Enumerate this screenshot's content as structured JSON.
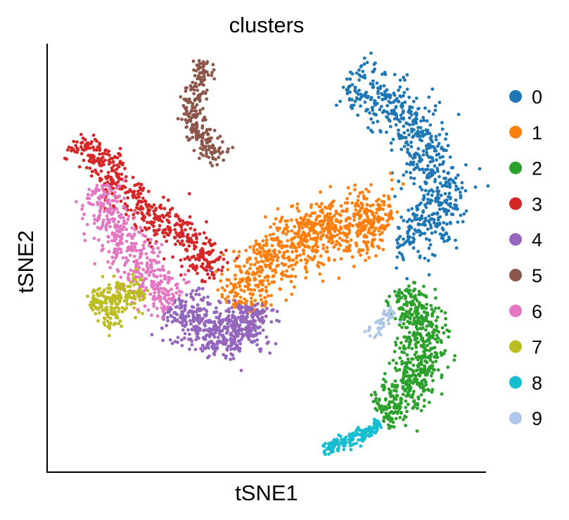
{
  "chart_data": {
    "type": "scatter",
    "title": "clusters",
    "xlabel": "tSNE1",
    "ylabel": "tSNE2",
    "xlim": [
      0,
      100
    ],
    "ylim": [
      0,
      100
    ],
    "grid": false,
    "legend_position": "right",
    "note_on_values": "tSNE axes print no ticks; point coordinates are cluster-shape outlines read in a 0–100 relative scale of each axis",
    "series": [
      {
        "name": "0",
        "color": "#1f77b4",
        "count": 650,
        "width": 3.2,
        "path": [
          [
            68.5,
            91.5
          ],
          [
            72,
            89.5
          ],
          [
            76.5,
            87.5
          ],
          [
            81,
            84.5
          ],
          [
            84.5,
            80
          ],
          [
            86.5,
            74.5
          ],
          [
            88.5,
            68.5
          ],
          [
            90,
            63
          ],
          [
            89.5,
            58
          ],
          [
            87.5,
            55.5
          ],
          [
            84,
            54.5
          ],
          [
            80,
            55
          ]
        ]
      },
      {
        "name": "1",
        "color": "#ff7f0e",
        "count": 850,
        "width": 3.4,
        "path": [
          [
            42,
            39
          ],
          [
            46,
            43.5
          ],
          [
            50.5,
            48.5
          ],
          [
            54,
            52
          ],
          [
            58,
            55
          ],
          [
            63,
            57
          ],
          [
            68,
            59.5
          ],
          [
            74,
            59.5
          ],
          [
            78,
            58
          ]
        ],
        "extra": [
          [
            [
              54,
              53
            ],
            [
              60,
              55
            ],
            [
              70,
              58
            ],
            [
              76,
              59
            ]
          ]
        ]
      },
      {
        "name": "2",
        "color": "#2ca02c",
        "count": 600,
        "width": 2.6,
        "path": [
          [
            81,
            43
          ],
          [
            84.5,
            37.5
          ],
          [
            86.5,
            30
          ],
          [
            84.5,
            22.5
          ],
          [
            80.5,
            16.5
          ],
          [
            76,
            13.2
          ]
        ]
      },
      {
        "name": "3",
        "color": "#d62728",
        "count": 500,
        "width": 2.2,
        "path": [
          [
            6.5,
            77.5
          ],
          [
            10.5,
            74
          ],
          [
            15,
            68.5
          ],
          [
            20,
            63.5
          ],
          [
            25.5,
            59
          ],
          [
            30.5,
            55
          ],
          [
            36,
            50
          ],
          [
            39,
            46
          ]
        ]
      },
      {
        "name": "4",
        "color": "#9467bd",
        "count": 550,
        "width": 2.8,
        "path": [
          [
            30,
            40
          ],
          [
            33,
            36
          ],
          [
            36,
            33
          ],
          [
            40,
            31
          ],
          [
            44,
            32
          ],
          [
            46.5,
            35
          ],
          [
            47,
            39
          ]
        ]
      },
      {
        "name": "5",
        "color": "#8c564b",
        "count": 240,
        "width": 1.3,
        "path": [
          [
            36,
            96
          ],
          [
            35,
            93
          ],
          [
            33.5,
            88
          ],
          [
            33,
            82
          ],
          [
            35,
            78
          ],
          [
            38.5,
            74.5
          ],
          [
            40.5,
            73
          ]
        ]
      },
      {
        "name": "6",
        "color": "#e377c2",
        "count": 450,
        "width": 2.8,
        "path": [
          [
            12,
            67
          ],
          [
            14,
            61
          ],
          [
            17,
            55
          ],
          [
            20,
            49
          ],
          [
            24.5,
            43
          ],
          [
            29,
            39.5
          ]
        ]
      },
      {
        "name": "7",
        "color": "#bcbd22",
        "count": 220,
        "width": 1.8,
        "path": [
          [
            10,
            39
          ],
          [
            14,
            40
          ],
          [
            18.5,
            41
          ],
          [
            22,
            42
          ]
        ],
        "extra": [
          [
            [
              13,
              34
            ],
            [
              14,
              35.5
            ],
            [
              15.5,
              37
            ]
          ]
        ]
      },
      {
        "name": "8",
        "color": "#17becf",
        "count": 170,
        "width": 0.7,
        "path": [
          [
            62.5,
            5.2
          ],
          [
            66,
            6.5
          ],
          [
            70,
            8
          ],
          [
            73.5,
            9.5
          ],
          [
            76,
            11.5
          ]
        ]
      },
      {
        "name": "9",
        "color": "#aec7e8",
        "count": 45,
        "width": 0.8,
        "path": [
          [
            73.5,
            32
          ],
          [
            75.5,
            34
          ],
          [
            77.5,
            36
          ],
          [
            78.5,
            38
          ]
        ]
      }
    ]
  }
}
